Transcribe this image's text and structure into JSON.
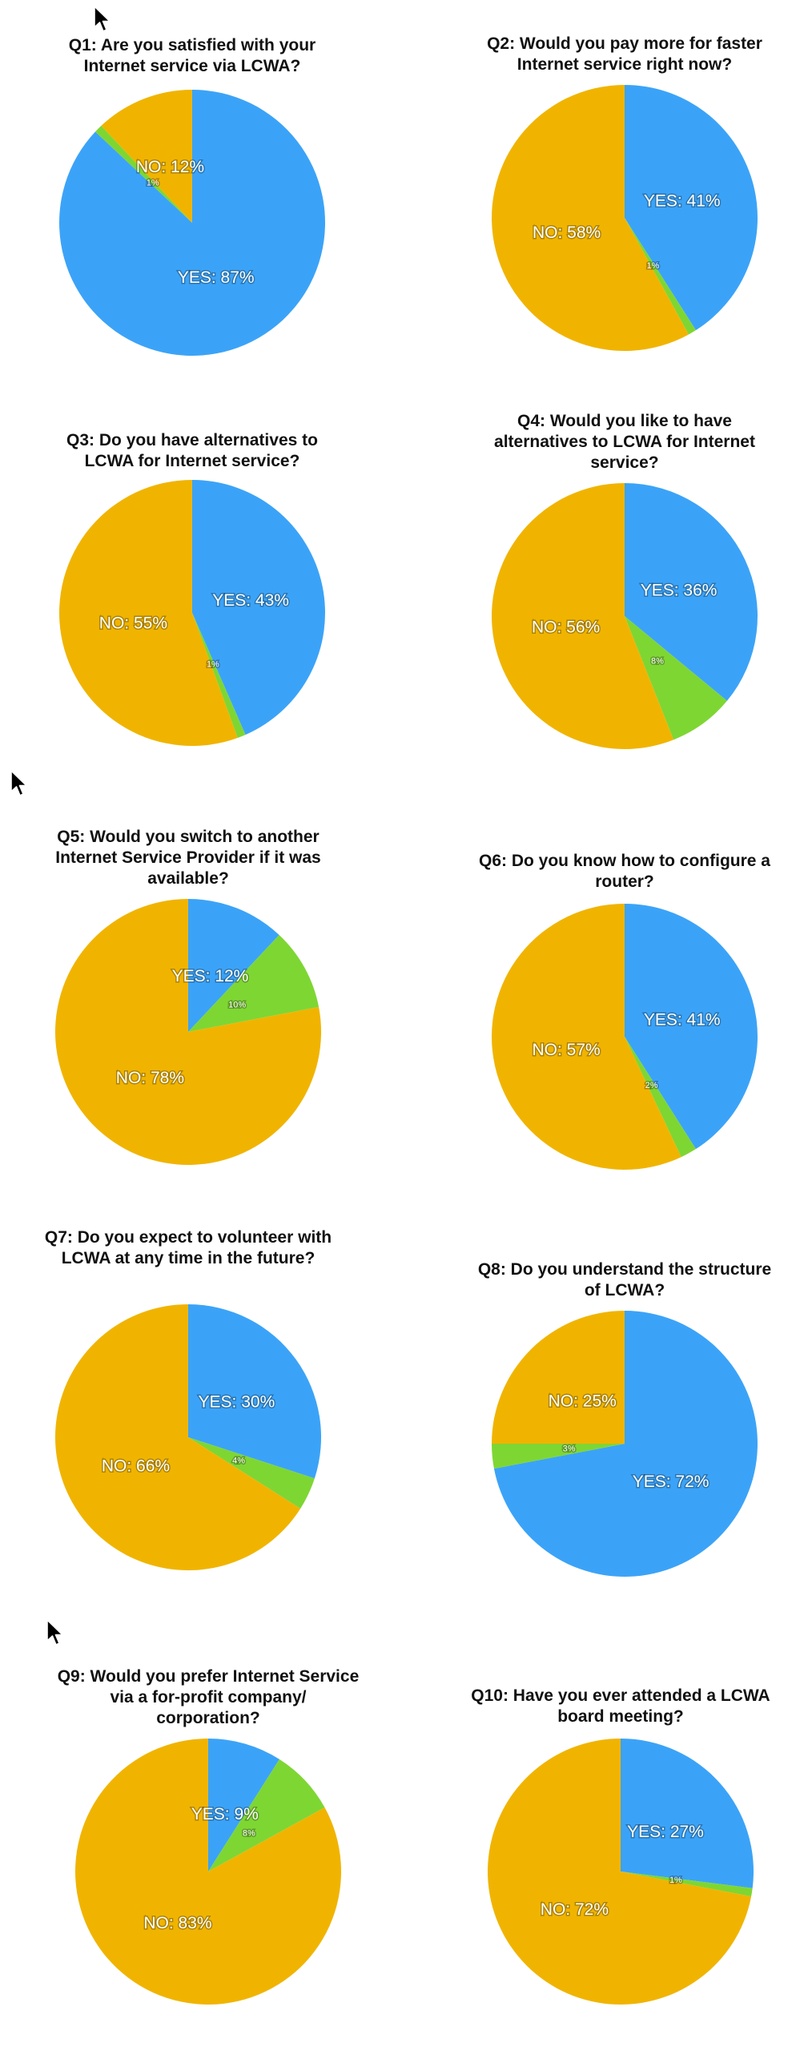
{
  "colors": {
    "yes": "#3BA3F7",
    "other": "#7ED633",
    "no": "#F0B400"
  },
  "chart_data": [
    {
      "type": "pie",
      "title": "Q1: Are you satisfied with your Internet service via LCWA?",
      "slices": [
        {
          "label": "YES: 87%",
          "value": 87
        },
        {
          "label": "1%",
          "value": 1
        },
        {
          "label": "NO: 12%",
          "value": 12
        }
      ]
    },
    {
      "type": "pie",
      "title": "Q2: Would you pay more for faster Internet service right now?",
      "slices": [
        {
          "label": "YES: 41%",
          "value": 41
        },
        {
          "label": "1%",
          "value": 1
        },
        {
          "label": "NO: 58%",
          "value": 58
        }
      ]
    },
    {
      "type": "pie",
      "title": "Q3: Do you have alternatives to LCWA for Internet service?",
      "slices": [
        {
          "label": "YES: 43%",
          "value": 43
        },
        {
          "label": "1%",
          "value": 1
        },
        {
          "label": "NO: 55%",
          "value": 55
        }
      ]
    },
    {
      "type": "pie",
      "title": "Q4: Would you like to have alternatives to LCWA for Internet service?",
      "slices": [
        {
          "label": "YES: 36%",
          "value": 36
        },
        {
          "label": "8%",
          "value": 8
        },
        {
          "label": "NO: 56%",
          "value": 56
        }
      ]
    },
    {
      "type": "pie",
      "title": "Q5: Would you switch to another Internet Service Provider if it was available?",
      "slices": [
        {
          "label": "YES: 12%",
          "value": 12
        },
        {
          "label": "10%",
          "value": 10
        },
        {
          "label": "NO: 78%",
          "value": 78
        }
      ]
    },
    {
      "type": "pie",
      "title": "Q6: Do you know how to configure a router?",
      "slices": [
        {
          "label": "YES: 41%",
          "value": 41
        },
        {
          "label": "2%",
          "value": 2
        },
        {
          "label": "NO: 57%",
          "value": 57
        }
      ]
    },
    {
      "type": "pie",
      "title": "Q7: Do you expect to volunteer with LCWA at any time in the future?",
      "slices": [
        {
          "label": "YES: 30%",
          "value": 30
        },
        {
          "label": "4%",
          "value": 4
        },
        {
          "label": "NO: 66%",
          "value": 66
        }
      ]
    },
    {
      "type": "pie",
      "title": "Q8: Do you understand the structure of LCWA?",
      "slices": [
        {
          "label": "YES: 72%",
          "value": 72
        },
        {
          "label": "3%",
          "value": 3
        },
        {
          "label": "NO: 25%",
          "value": 25
        }
      ]
    },
    {
      "type": "pie",
      "title": "Q9: Would you prefer Internet Service via a for-profit company/ corporation?",
      "slices": [
        {
          "label": "YES: 9%",
          "value": 9
        },
        {
          "label": "8%",
          "value": 8
        },
        {
          "label": "NO: 83%",
          "value": 83
        }
      ]
    },
    {
      "type": "pie",
      "title": "Q10: Have you ever attended a LCWA board meeting?",
      "slices": [
        {
          "label": "YES: 27%",
          "value": 27
        },
        {
          "label": "1%",
          "value": 1
        },
        {
          "label": "NO: 72%",
          "value": 72
        }
      ]
    }
  ]
}
